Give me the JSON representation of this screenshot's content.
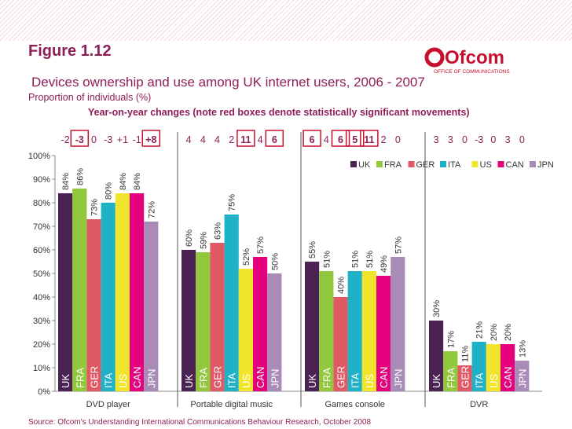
{
  "header": {
    "figure": "Figure 1.12",
    "subtitle": "Devices ownership and use among UK internet users, 2006 - 2007",
    "proportion_label": "Proportion of individuals (%)",
    "changes_title": "Year-on-year changes (note red boxes denote statistically significant movements)",
    "source": "Source: Ofcom's Understanding International Communications Behaviour Research, October 2008",
    "logo_text": "Ofcom",
    "logo_tagline": "OFFICE OF COMMUNICATIONS"
  },
  "colors": {
    "UK": "#4b2352",
    "FRA": "#92c83e",
    "GER": "#e05a66",
    "ITA": "#1fb2c7",
    "US": "#f0e52c",
    "CAN": "#e5007d",
    "JPN": "#a98bb7",
    "brand": "#8e1f56",
    "significant_box": "#c8102e"
  },
  "chart_data": {
    "type": "bar",
    "title": "Devices ownership and use among UK internet users, 2006 - 2007",
    "ylabel": "Proportion of individuals (%)",
    "ylim": [
      0,
      100
    ],
    "yticks": [
      "0%",
      "10%",
      "20%",
      "30%",
      "40%",
      "50%",
      "60%",
      "70%",
      "80%",
      "90%",
      "100%"
    ],
    "countries": [
      "UK",
      "FRA",
      "GER",
      "ITA",
      "US",
      "CAN",
      "JPN"
    ],
    "legend": [
      "UK",
      "FRA",
      "GER",
      "ITA",
      "US",
      "CAN",
      "JPN"
    ],
    "legend_position": "top-right",
    "groups": [
      {
        "name": "DVD player",
        "values": [
          84,
          86,
          73,
          80,
          84,
          84,
          72
        ],
        "changes": [
          "-2",
          "-3",
          "0",
          "-3",
          "+1",
          "-1",
          "+8"
        ],
        "significant": [
          false,
          true,
          false,
          false,
          false,
          false,
          true
        ]
      },
      {
        "name": "Portable digital music",
        "values": [
          60,
          59,
          63,
          75,
          52,
          57,
          50
        ],
        "changes": [
          "4",
          "4",
          "4",
          "2",
          "11",
          "4",
          "6"
        ],
        "significant": [
          false,
          false,
          false,
          false,
          true,
          false,
          true
        ]
      },
      {
        "name": "Games console",
        "values": [
          55,
          51,
          40,
          51,
          51,
          49,
          57
        ],
        "changes": [
          "6",
          "4",
          "6",
          "5",
          "11",
          "2",
          "0"
        ],
        "significant": [
          true,
          false,
          true,
          true,
          true,
          false,
          false
        ]
      },
      {
        "name": "DVR",
        "values": [
          30,
          17,
          11,
          21,
          20,
          20,
          13
        ],
        "changes": [
          "3",
          "3",
          "0",
          "-3",
          "0",
          "3",
          "0"
        ],
        "significant": [
          false,
          false,
          false,
          false,
          false,
          false,
          false
        ]
      }
    ]
  }
}
